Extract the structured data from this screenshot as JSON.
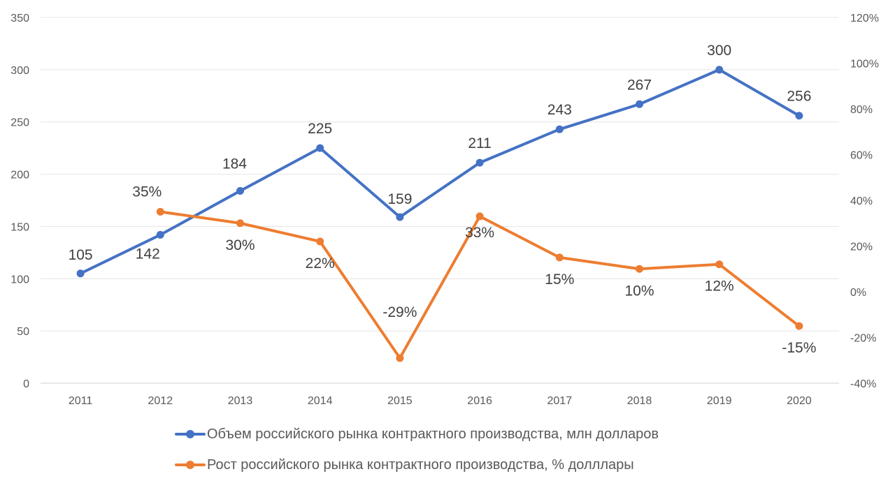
{
  "chart_data": {
    "type": "line",
    "categories": [
      "2011",
      "2012",
      "2013",
      "2014",
      "2015",
      "2016",
      "2017",
      "2018",
      "2019",
      "2020"
    ],
    "y_left": {
      "ylim": [
        0,
        350
      ],
      "ticks": [
        0,
        50,
        100,
        150,
        200,
        250,
        300,
        350
      ],
      "tick_labels": [
        "0",
        "50",
        "100",
        "150",
        "200",
        "250",
        "300",
        "350"
      ]
    },
    "y_right": {
      "ylim": [
        -40,
        120
      ],
      "ticks": [
        -40,
        -20,
        0,
        20,
        40,
        60,
        80,
        100,
        120
      ],
      "tick_labels": [
        "-40%",
        "-20%",
        "0%",
        "20%",
        "40%",
        "60%",
        "80%",
        "100%",
        "120%"
      ]
    },
    "grid": true,
    "legend_position": "bottom",
    "series": [
      {
        "name": "Объем российского рынка контрактного производства, млн долларов",
        "axis": "left",
        "color": "#4472C4",
        "values": [
          105,
          142,
          184,
          225,
          159,
          211,
          243,
          267,
          300,
          256
        ],
        "labels": [
          "105",
          "142",
          "184",
          "225",
          "159",
          "211",
          "243",
          "267",
          "300",
          "256"
        ]
      },
      {
        "name": "Рост российского рынка контрактного производства, % долллары",
        "axis": "right",
        "color": "#ED7D31",
        "values": [
          null,
          35,
          30,
          22,
          -29,
          33,
          15,
          10,
          12,
          -15
        ],
        "labels": [
          null,
          "35%",
          "30%",
          "22%",
          "-29%",
          "33%",
          "15%",
          "10%",
          "12%",
          "-15%"
        ]
      }
    ]
  }
}
